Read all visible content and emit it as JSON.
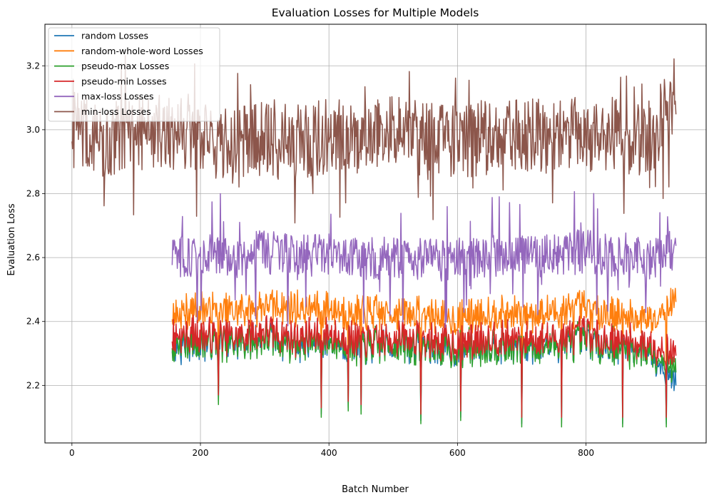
{
  "chart_data": {
    "type": "line",
    "title": "Evaluation Losses for Multiple Models",
    "xlabel": "Batch Number",
    "ylabel": "Evaluation Loss",
    "xlim": [
      -42,
      987
    ],
    "ylim": [
      2.02,
      3.33
    ],
    "xticks": [
      0,
      200,
      400,
      600,
      800
    ],
    "yticks": [
      2.2,
      2.4,
      2.6,
      2.8,
      3.0,
      3.2
    ],
    "xtick_labels": [
      "0",
      "200",
      "400",
      "600",
      "800"
    ],
    "ytick_labels": [
      "2.2",
      "2.4",
      "2.6",
      "2.8",
      "3.0",
      "3.2"
    ],
    "grid": true,
    "legend_position": "upper-left",
    "series": [
      {
        "name": "random Losses",
        "color": "#1f77b4",
        "start": 156,
        "end": 940,
        "x": [
          156,
          200,
          250,
          300,
          350,
          400,
          450,
          500,
          550,
          600,
          650,
          700,
          750,
          800,
          850,
          900,
          940
        ],
        "y": [
          2.32,
          2.34,
          2.33,
          2.35,
          2.33,
          2.34,
          2.32,
          2.33,
          2.32,
          2.31,
          2.33,
          2.32,
          2.33,
          2.34,
          2.32,
          2.31,
          2.21
        ]
      },
      {
        "name": "random-whole-word Losses",
        "color": "#ff7f0e",
        "start": 156,
        "end": 940,
        "x": [
          156,
          200,
          250,
          300,
          350,
          400,
          450,
          500,
          550,
          600,
          650,
          700,
          750,
          800,
          850,
          900,
          940
        ],
        "y": [
          2.42,
          2.44,
          2.43,
          2.45,
          2.44,
          2.44,
          2.42,
          2.43,
          2.42,
          2.41,
          2.43,
          2.42,
          2.43,
          2.44,
          2.42,
          2.41,
          2.47
        ]
      },
      {
        "name": "pseudo-max Losses",
        "color": "#2ca02c",
        "start": 156,
        "end": 940,
        "x": [
          156,
          200,
          250,
          300,
          350,
          400,
          450,
          500,
          550,
          600,
          650,
          700,
          750,
          800,
          850,
          900,
          940
        ],
        "y": [
          2.33,
          2.34,
          2.33,
          2.35,
          2.33,
          2.34,
          2.32,
          2.33,
          2.32,
          2.31,
          2.33,
          2.32,
          2.33,
          2.34,
          2.32,
          2.31,
          2.25
        ]
      },
      {
        "name": "pseudo-min Losses",
        "color": "#d62728",
        "start": 156,
        "end": 940,
        "x": [
          156,
          200,
          250,
          300,
          350,
          400,
          450,
          500,
          550,
          600,
          650,
          700,
          750,
          800,
          850,
          900,
          940
        ],
        "y": [
          2.35,
          2.36,
          2.35,
          2.37,
          2.35,
          2.36,
          2.34,
          2.35,
          2.34,
          2.33,
          2.35,
          2.34,
          2.35,
          2.36,
          2.34,
          2.33,
          2.3
        ]
      },
      {
        "name": "max-loss Losses",
        "color": "#9467bd",
        "start": 156,
        "end": 940,
        "x": [
          156,
          200,
          250,
          300,
          350,
          400,
          450,
          500,
          550,
          600,
          650,
          700,
          750,
          800,
          850,
          900,
          940
        ],
        "y": [
          2.6,
          2.61,
          2.6,
          2.62,
          2.6,
          2.61,
          2.59,
          2.6,
          2.6,
          2.59,
          2.61,
          2.6,
          2.61,
          2.62,
          2.6,
          2.59,
          2.63
        ]
      },
      {
        "name": "min-loss Losses",
        "color": "#8c564b",
        "start": 0,
        "end": 940,
        "x": [
          0,
          50,
          100,
          150,
          200,
          250,
          300,
          350,
          400,
          450,
          500,
          550,
          600,
          650,
          700,
          750,
          800,
          850,
          900,
          940
        ],
        "y": [
          3.0,
          2.97,
          2.99,
          3.0,
          2.96,
          2.95,
          2.97,
          2.96,
          2.98,
          2.97,
          2.99,
          2.97,
          2.96,
          2.98,
          2.99,
          2.98,
          2.99,
          2.98,
          2.97,
          3.13
        ]
      }
    ],
    "notable_dips": [
      {
        "x": 228,
        "y": 2.14
      },
      {
        "x": 388,
        "y": 2.1
      },
      {
        "x": 430,
        "y": 2.12
      },
      {
        "x": 450,
        "y": 2.11
      },
      {
        "x": 543,
        "y": 2.08
      },
      {
        "x": 605,
        "y": 2.09
      },
      {
        "x": 700,
        "y": 2.07
      },
      {
        "x": 762,
        "y": 2.07
      },
      {
        "x": 857,
        "y": 2.07
      },
      {
        "x": 925,
        "y": 2.07
      }
    ]
  }
}
